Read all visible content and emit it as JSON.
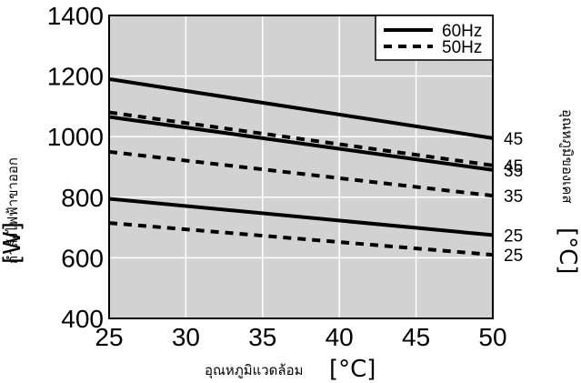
{
  "chart_data": {
    "type": "line",
    "xlabel": "อุณหภูมิแวดล้อม",
    "xunit": "[°C]",
    "ylabel": "กำลังไฟฟ้าขาออก",
    "yunit": "[W]",
    "right_label": "อุณหภูมิของเคส",
    "right_unit": "[°C]",
    "xlim": [
      25,
      50
    ],
    "ylim": [
      400,
      1400
    ],
    "xticks": [
      "25",
      "30",
      "35",
      "40",
      "45",
      "50"
    ],
    "yticks": [
      "400",
      "600",
      "800",
      "1000",
      "1200",
      "1400"
    ],
    "grid": true,
    "legend": {
      "placement": "top-right",
      "entries": [
        {
          "name": "60Hz",
          "style": "solid"
        },
        {
          "name": "50Hz",
          "style": "dashed"
        }
      ]
    },
    "series": [
      {
        "legend": "60Hz",
        "style": "solid",
        "x": [
          25,
          50
        ],
        "values": [
          1190,
          995
        ],
        "end_label": "45"
      },
      {
        "legend": "50Hz",
        "style": "dashed",
        "x": [
          25,
          50
        ],
        "values": [
          1080,
          905
        ],
        "end_label": "45"
      },
      {
        "legend": "60Hz",
        "style": "solid",
        "x": [
          25,
          50
        ],
        "values": [
          1065,
          890
        ],
        "end_label": "35"
      },
      {
        "legend": "50Hz",
        "style": "dashed",
        "x": [
          25,
          50
        ],
        "values": [
          950,
          805
        ],
        "end_label": "35"
      },
      {
        "legend": "60Hz",
        "style": "solid",
        "x": [
          25,
          50
        ],
        "values": [
          795,
          675
        ],
        "end_label": "25"
      },
      {
        "legend": "50Hz",
        "style": "dashed",
        "x": [
          25,
          50
        ],
        "values": [
          715,
          610
        ],
        "end_label": "25"
      }
    ],
    "colors": {
      "plot_bg": "#d2d2d2",
      "grid": "#ffffff",
      "line": "#000000"
    }
  }
}
